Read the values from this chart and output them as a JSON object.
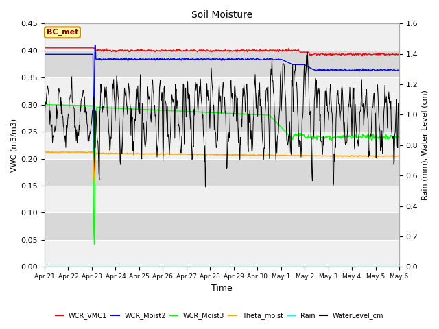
{
  "title": "Soil Moisture",
  "xlabel": "Time",
  "ylabel_left": "VWC (m3/m3)",
  "ylabel_right": "Rain (mm), Water Level (cm)",
  "ylim_left": [
    0.0,
    0.45
  ],
  "ylim_right": [
    0.0,
    1.6
  ],
  "yticks_left": [
    0.0,
    0.05,
    0.1,
    0.15,
    0.2,
    0.25,
    0.3,
    0.35,
    0.4,
    0.45
  ],
  "yticks_right": [
    0.0,
    0.2,
    0.4,
    0.6,
    0.8,
    1.0,
    1.2,
    1.4,
    1.6
  ],
  "bg_color": "#ffffff",
  "plot_bg_light": "#f0f0f0",
  "plot_bg_dark": "#e0e0e0",
  "legend_labels": [
    "WCR_VMC1",
    "WCR_Moist2",
    "WCR_Moist3",
    "Theta_moist",
    "Rain",
    "WaterLevel_cm"
  ],
  "legend_colors": [
    "red",
    "blue",
    "lime",
    "orange",
    "cyan",
    "black"
  ],
  "annotation_text": "BC_met",
  "xtick_labels": [
    "Apr 21",
    "Apr 22",
    "Apr 23",
    "Apr 24",
    "Apr 25",
    "Apr 26",
    "Apr 27",
    "Apr 28",
    "Apr 29",
    "Apr 30",
    "May 1",
    "May 2",
    "May 3",
    "May 4",
    "May 5",
    "May 6"
  ],
  "n_points": 720,
  "days": 15
}
